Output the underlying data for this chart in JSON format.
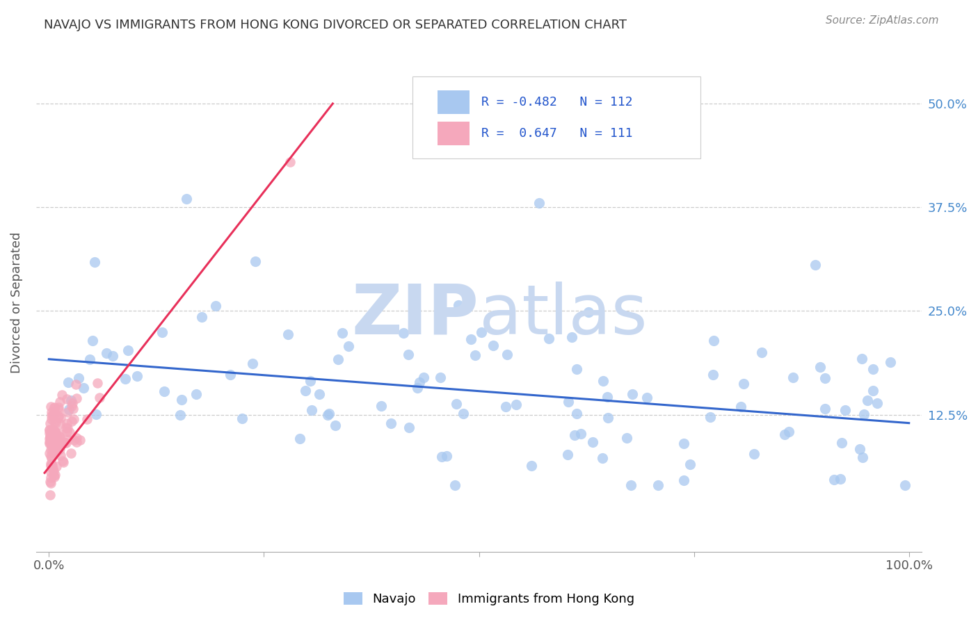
{
  "title": "NAVAJO VS IMMIGRANTS FROM HONG KONG DIVORCED OR SEPARATED CORRELATION CHART",
  "source": "Source: ZipAtlas.com",
  "ylabel": "Divorced or Separated",
  "ytick_labels": [
    "12.5%",
    "25.0%",
    "37.5%",
    "50.0%"
  ],
  "ytick_values": [
    0.125,
    0.25,
    0.375,
    0.5
  ],
  "xlim": [
    -0.015,
    1.015
  ],
  "ylim": [
    -0.04,
    0.56
  ],
  "legend_blue_R": "R = -0.482",
  "legend_blue_N": "N = 112",
  "legend_pink_R": "R =  0.647",
  "legend_pink_N": "N = 111",
  "blue_color": "#a8c8f0",
  "pink_color": "#f5a8bc",
  "trend_blue_color": "#3366cc",
  "trend_pink_color": "#e8305a",
  "watermark_zip_color": "#c8d8f0",
  "watermark_atlas_color": "#c8d8f0",
  "background_color": "#ffffff",
  "blue_trend_x": [
    0.0,
    1.0
  ],
  "blue_trend_y": [
    0.192,
    0.115
  ],
  "pink_trend_x": [
    -0.005,
    0.33
  ],
  "pink_trend_y": [
    0.055,
    0.5
  ]
}
